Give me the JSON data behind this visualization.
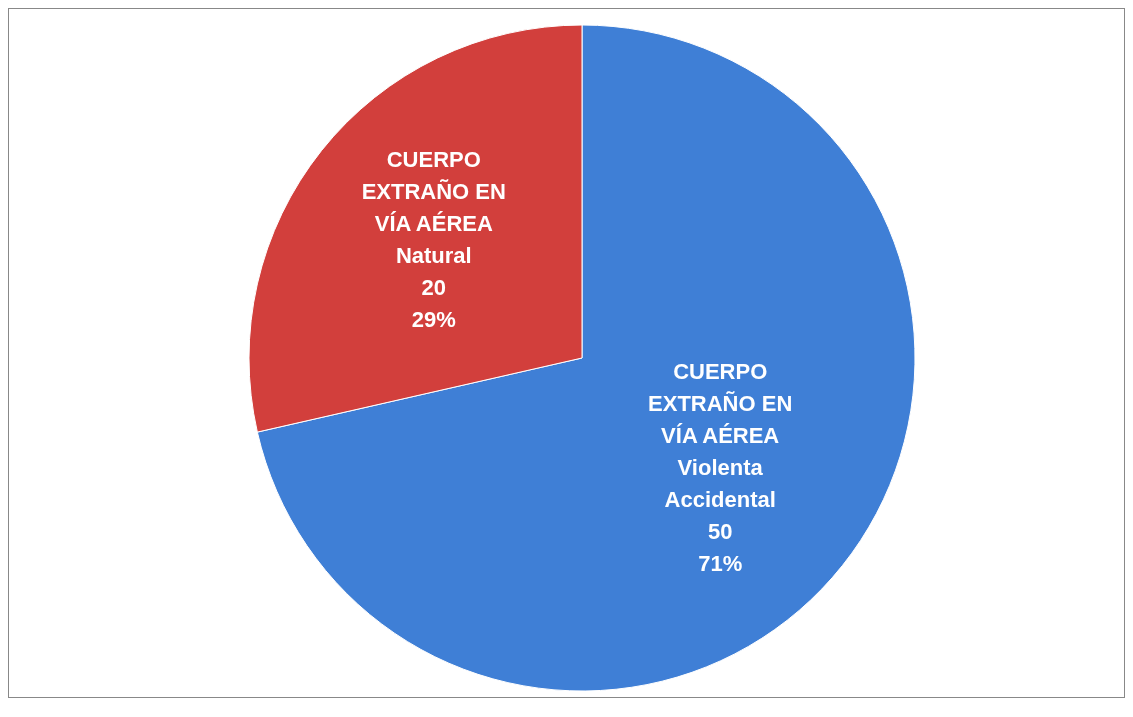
{
  "chart_data": {
    "type": "pie",
    "categories": [
      "CUERPO EXTRAÑO EN VÍA AÉREA Violenta Accidental",
      "CUERPO EXTRAÑO EN VÍA AÉREA Natural"
    ],
    "values": [
      50,
      20
    ],
    "colors": [
      "#3f7fd6",
      "#d23f3c"
    ],
    "value_labels": [
      "50\n71%",
      "20\n29%"
    ]
  }
}
